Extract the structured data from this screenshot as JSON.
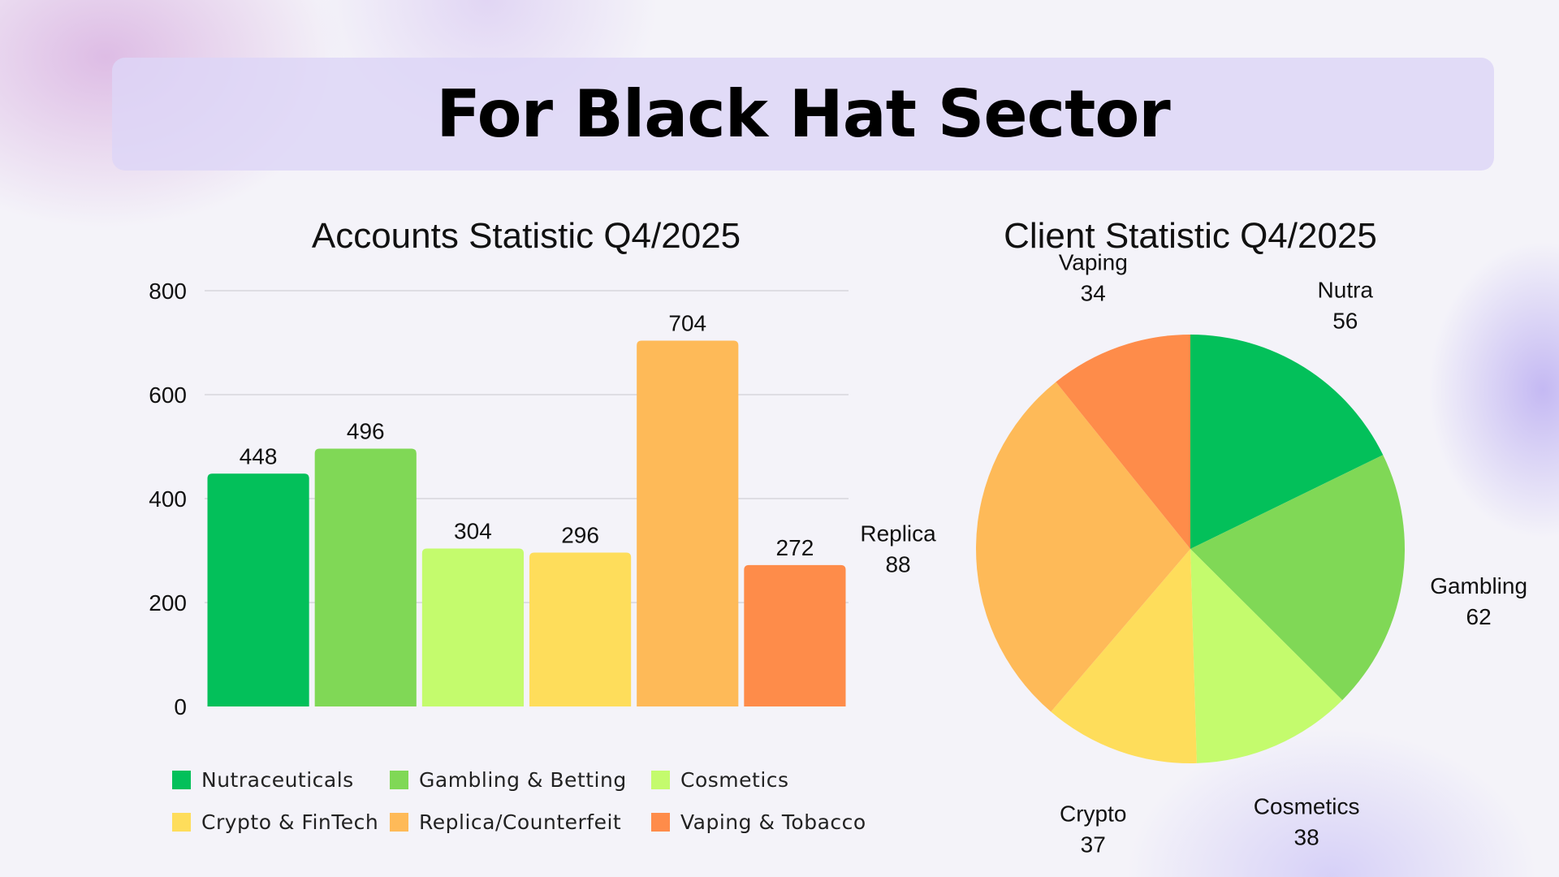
{
  "page": {
    "title": "For Black Hat Sector"
  },
  "chart_data": [
    {
      "type": "bar",
      "title": "Accounts Statistic Q4/2025",
      "categories": [
        "Nutraceuticals",
        "Gambling & Betting",
        "Cosmetics",
        "Crypto & FinTech",
        "Replica/Counterfeit",
        "Vaping & Tobacco"
      ],
      "values": [
        448,
        496,
        304,
        296,
        704,
        272
      ],
      "colors": [
        "#03c05a",
        "#80d856",
        "#c4fb6d",
        "#fedd5b",
        "#feba58",
        "#fe8c4a"
      ],
      "ylim": [
        0,
        800
      ],
      "yticks": [
        0,
        200,
        400,
        600,
        800
      ],
      "grid": true,
      "legend": "bottom"
    },
    {
      "type": "pie",
      "title": "Client Statistic Q4/2025",
      "labels": [
        "Nutra",
        "Gambling",
        "Cosmetics",
        "Crypto",
        "Replica",
        "Vaping"
      ],
      "values": [
        56,
        62,
        38,
        37,
        88,
        34
      ],
      "colors": [
        "#03c05a",
        "#80d856",
        "#c4fb6d",
        "#fedd5b",
        "#feba58",
        "#fe8c4a"
      ]
    }
  ]
}
